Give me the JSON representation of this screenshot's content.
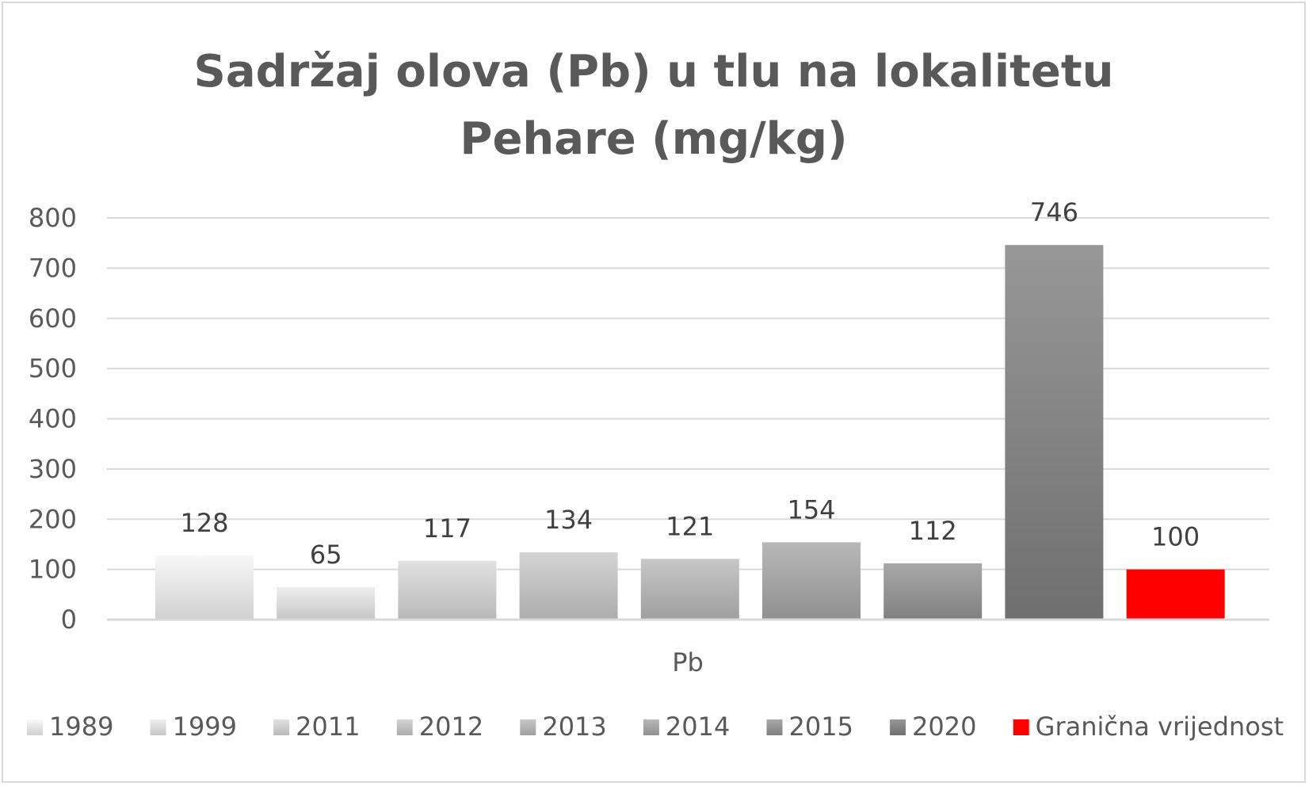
{
  "chart_data": {
    "type": "bar",
    "title_lines": [
      "Sadržaj olova (Pb) u tlu na lokalitetu",
      "Pehare (mg/kg)"
    ],
    "categories": [
      "Pb"
    ],
    "series": [
      {
        "name": "1989",
        "values": [
          128
        ],
        "color": "#e6e6e6"
      },
      {
        "name": "1999",
        "values": [
          65
        ],
        "color": "#dcdcdc"
      },
      {
        "name": "2011",
        "values": [
          117
        ],
        "color": "#cfcfcf"
      },
      {
        "name": "2012",
        "values": [
          134
        ],
        "color": "#c2c2c2"
      },
      {
        "name": "2013",
        "values": [
          121
        ],
        "color": "#b5b5b5"
      },
      {
        "name": "2014",
        "values": [
          154
        ],
        "color": "#a6a6a6"
      },
      {
        "name": "2015",
        "values": [
          112
        ],
        "color": "#969696"
      },
      {
        "name": "2020",
        "values": [
          746
        ],
        "color": "#858585"
      },
      {
        "name": "Granična vrijednost",
        "values": [
          100
        ],
        "color": "#ff0000"
      }
    ],
    "ylim": [
      0,
      800
    ],
    "yticks": [
      "0",
      "100",
      "200",
      "300",
      "400",
      "500",
      "600",
      "700",
      "800"
    ],
    "grid": true,
    "legend_position": "bottom"
  }
}
